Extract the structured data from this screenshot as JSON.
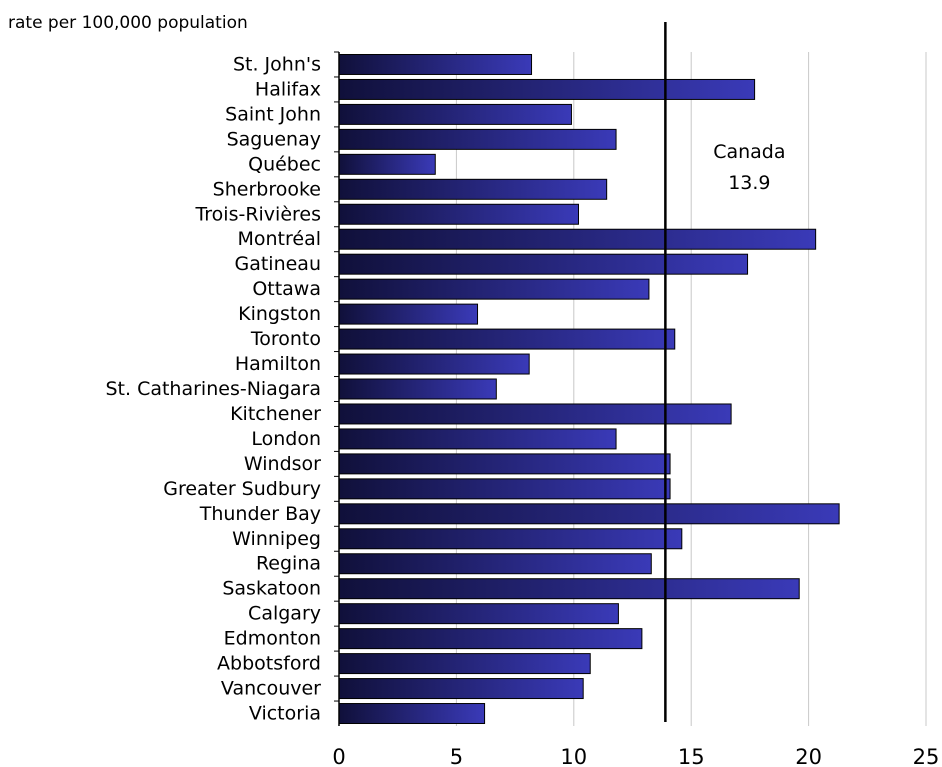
{
  "chart_data": {
    "type": "bar",
    "orientation": "horizontal",
    "title": "",
    "xlabel": "",
    "ylabel": "rate per 100,000 population",
    "categories": [
      "St. John's",
      "Halifax",
      "Saint John",
      "Saguenay",
      "Québec",
      "Sherbrooke",
      "Trois-Rivières",
      "Montréal",
      "Gatineau",
      "Ottawa",
      "Kingston",
      "Toronto",
      "Hamilton",
      "St. Catharines-Niagara",
      "Kitchener",
      "London",
      "Windsor",
      "Greater Sudbury",
      "Thunder Bay",
      "Winnipeg",
      "Regina",
      "Saskatoon",
      "Calgary",
      "Edmonton",
      "Abbotsford",
      "Vancouver",
      "Victoria"
    ],
    "values": [
      8.2,
      17.7,
      9.9,
      11.8,
      4.1,
      11.4,
      10.2,
      20.3,
      17.4,
      13.2,
      5.9,
      14.3,
      8.1,
      6.7,
      16.7,
      11.8,
      14.1,
      14.1,
      21.3,
      14.6,
      13.3,
      19.6,
      11.9,
      12.9,
      10.7,
      10.4,
      6.2
    ],
    "xlim": [
      0,
      25
    ],
    "xticks": [
      0,
      5,
      10,
      15,
      20,
      25
    ],
    "grid": true,
    "reference_line": {
      "value": 13.9,
      "label_line1": "Canada",
      "label_line2": "13.9"
    },
    "colors": {
      "bar_dark": "#10103a",
      "bar_light": "#3a3ab8",
      "grid": "#c8c8c8",
      "axis": "#000000"
    }
  }
}
